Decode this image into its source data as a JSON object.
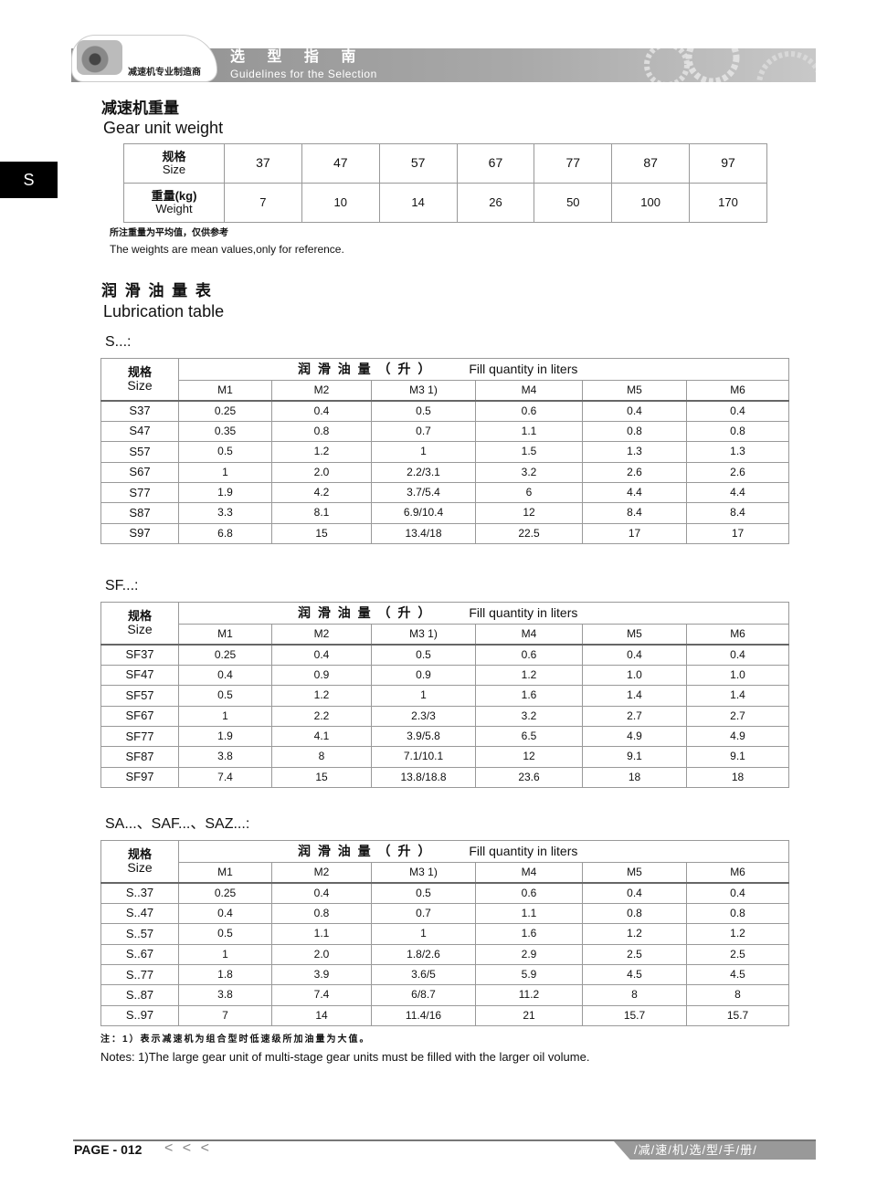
{
  "header": {
    "maker": "减速机专业制造商",
    "title_cn": "选 型 指 南",
    "title_en": "Guidelines for the Selection"
  },
  "side_tab": "S",
  "weight": {
    "title_cn": "减速机重量",
    "title_en": "Gear unit weight",
    "size_cn": "规格",
    "size_en": "Size",
    "weight_cn": "重量(kg)",
    "weight_en": "Weight",
    "sizes": [
      "37",
      "47",
      "57",
      "67",
      "77",
      "87",
      "97"
    ],
    "weights": [
      "7",
      "10",
      "14",
      "26",
      "50",
      "100",
      "170"
    ],
    "note_cn": "所注重量为平均值，仅供参考",
    "note_en": "The weights are mean values,only for reference."
  },
  "lube": {
    "title_cn": "润 滑 油 量 表",
    "title_en": "Lubrication table",
    "size_cn": "规格",
    "size_en": "Size",
    "fill_cn": "润 滑 油 量 （ 升 ）",
    "fill_en": "Fill quantity in liters",
    "cols": [
      "M1",
      "M2",
      "M3 1)",
      "M4",
      "M5",
      "M6"
    ],
    "tables": [
      {
        "label": "S...:",
        "rows": [
          [
            "S37",
            "0.25",
            "0.4",
            "0.5",
            "0.6",
            "0.4",
            "0.4"
          ],
          [
            "S47",
            "0.35",
            "0.8",
            "0.7",
            "1.1",
            "0.8",
            "0.8"
          ],
          [
            "S57",
            "0.5",
            "1.2",
            "1",
            "1.5",
            "1.3",
            "1.3"
          ],
          [
            "S67",
            "1",
            "2.0",
            "2.2/3.1",
            "3.2",
            "2.6",
            "2.6"
          ],
          [
            "S77",
            "1.9",
            "4.2",
            "3.7/5.4",
            "6",
            "4.4",
            "4.4"
          ],
          [
            "S87",
            "3.3",
            "8.1",
            "6.9/10.4",
            "12",
            "8.4",
            "8.4"
          ],
          [
            "S97",
            "6.8",
            "15",
            "13.4/18",
            "22.5",
            "17",
            "17"
          ]
        ]
      },
      {
        "label": "SF...:",
        "rows": [
          [
            "SF37",
            "0.25",
            "0.4",
            "0.5",
            "0.6",
            "0.4",
            "0.4"
          ],
          [
            "SF47",
            "0.4",
            "0.9",
            "0.9",
            "1.2",
            "1.0",
            "1.0"
          ],
          [
            "SF57",
            "0.5",
            "1.2",
            "1",
            "1.6",
            "1.4",
            "1.4"
          ],
          [
            "SF67",
            "1",
            "2.2",
            "2.3/3",
            "3.2",
            "2.7",
            "2.7"
          ],
          [
            "SF77",
            "1.9",
            "4.1",
            "3.9/5.8",
            "6.5",
            "4.9",
            "4.9"
          ],
          [
            "SF87",
            "3.8",
            "8",
            "7.1/10.1",
            "12",
            "9.1",
            "9.1"
          ],
          [
            "SF97",
            "7.4",
            "15",
            "13.8/18.8",
            "23.6",
            "18",
            "18"
          ]
        ]
      },
      {
        "label": "SA...、SAF...、SAZ...:",
        "rows": [
          [
            "S..37",
            "0.25",
            "0.4",
            "0.5",
            "0.6",
            "0.4",
            "0.4"
          ],
          [
            "S..47",
            "0.4",
            "0.8",
            "0.7",
            "1.1",
            "0.8",
            "0.8"
          ],
          [
            "S..57",
            "0.5",
            "1.1",
            "1",
            "1.6",
            "1.2",
            "1.2"
          ],
          [
            "S..67",
            "1",
            "2.0",
            "1.8/2.6",
            "2.9",
            "2.5",
            "2.5"
          ],
          [
            "S..77",
            "1.8",
            "3.9",
            "3.6/5",
            "5.9",
            "4.5",
            "4.5"
          ],
          [
            "S..87",
            "3.8",
            "7.4",
            "6/8.7",
            "11.2",
            "8",
            "8"
          ],
          [
            "S..97",
            "7",
            "14",
            "11.4/16",
            "21",
            "15.7",
            "15.7"
          ]
        ]
      }
    ],
    "note_cn": "注：1）表示减速机为组合型时低速级所加油量为大值。",
    "note_en": "Notes: 1)The large gear unit of multi-stage gear units must be filled with the larger oil volume."
  },
  "footer": {
    "page": "PAGE - 012",
    "arrows": "< < <",
    "manual": "/减/速/机/选/型/手/册/"
  }
}
